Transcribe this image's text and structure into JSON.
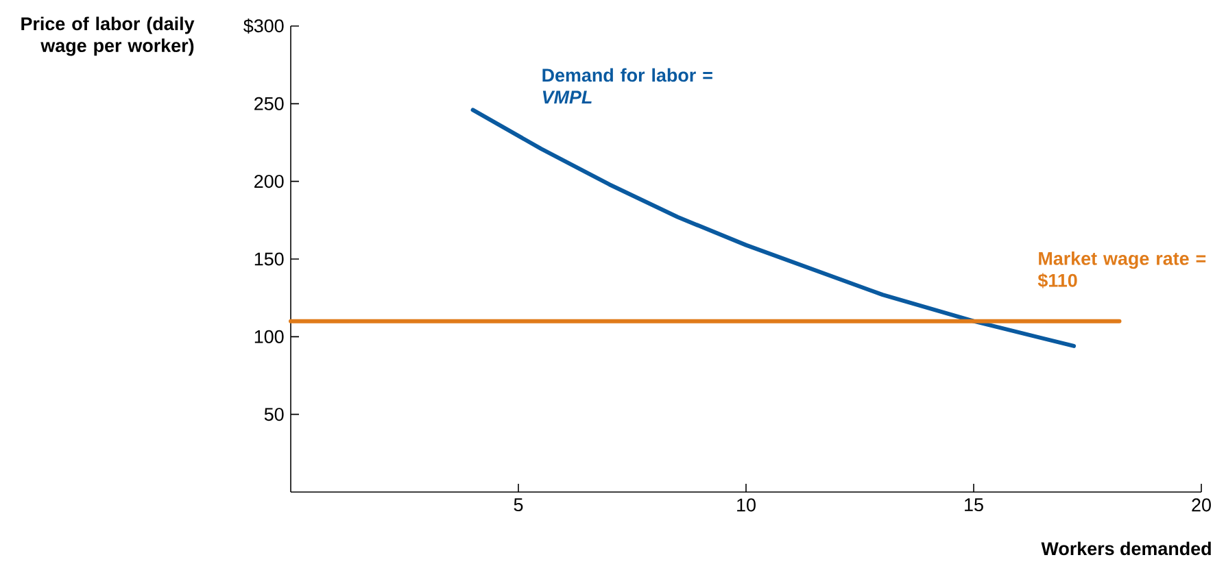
{
  "chart_data": {
    "type": "line",
    "xlabel": "Workers demanded",
    "ylabel": "Price of labor (daily wage per worker)",
    "xlim": [
      0,
      20
    ],
    "ylim": [
      0,
      300
    ],
    "xticks": [
      5,
      10,
      15,
      20
    ],
    "yticks": [
      50,
      100,
      150,
      200,
      250,
      {
        "value": 300,
        "label": "$300"
      }
    ],
    "series": [
      {
        "name": "Demand for labor = *VMPL*",
        "color": "#0a5aa0",
        "x": [
          4,
          5.5,
          7,
          8.5,
          10,
          11.5,
          13,
          15,
          17.2
        ],
        "values": [
          246,
          221,
          198,
          177,
          159,
          143,
          127,
          110,
          94
        ]
      },
      {
        "name": "Market wage rate = $110",
        "color": "#e07b1a",
        "x": [
          0,
          18.2
        ],
        "values": [
          110,
          110
        ]
      }
    ]
  }
}
